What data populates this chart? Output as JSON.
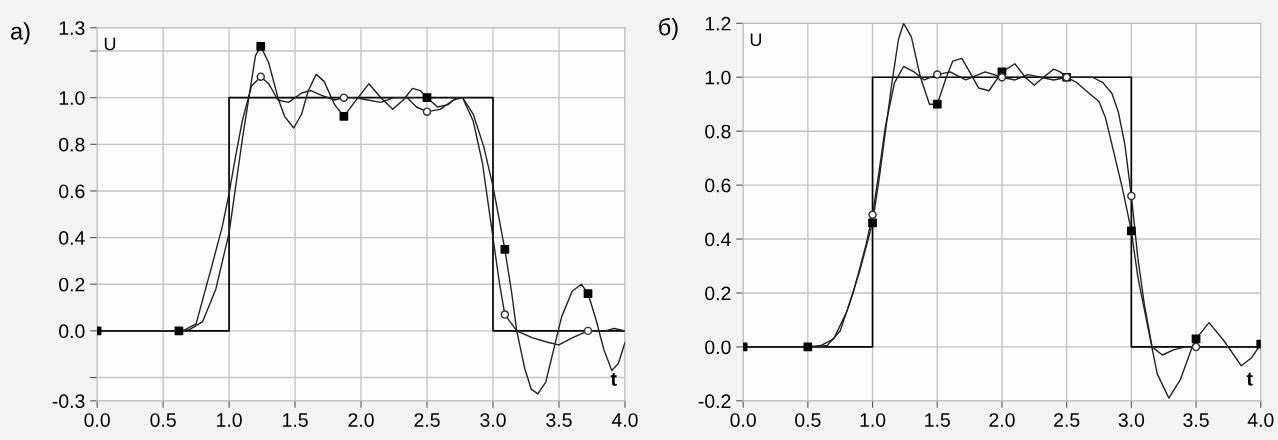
{
  "chart_data": [
    {
      "type": "line",
      "title": "а)",
      "xlabel": "t",
      "ylabel": "U",
      "xlim": [
        0,
        4
      ],
      "ylim": [
        -0.3,
        1.3
      ],
      "xticks": [
        {
          "value": 0,
          "label": "0.0"
        },
        0.5,
        {
          "value": 1,
          "label": "1.0"
        },
        1.5,
        {
          "value": 2,
          "label": "2.0"
        },
        2.5,
        {
          "value": 3,
          "label": "3.0"
        },
        3.5,
        {
          "value": 4,
          "label": "4.0"
        }
      ],
      "yticks": [
        -0.3,
        {
          "value": -0.2,
          "label": null
        },
        {
          "value": 0,
          "label": "0.0"
        },
        0.2,
        0.4,
        0.6,
        0.8,
        {
          "value": 1,
          "label": "1.0"
        },
        {
          "value": 1.2,
          "label": null
        },
        1.3
      ],
      "grid": true,
      "legend": false,
      "series": [
        {
          "type": "step",
          "color": "#000000",
          "x": [
            0,
            1,
            3,
            4
          ],
          "values": [
            0,
            1,
            0,
            0
          ]
        },
        {
          "color": "#222222",
          "x": [
            0,
            0.62,
            0.7,
            0.8,
            0.9,
            1.0,
            1.05,
            1.1,
            1.15,
            1.2,
            1.24,
            1.3,
            1.37,
            1.42,
            1.49,
            1.55,
            1.6,
            1.66,
            1.72,
            1.8,
            1.87,
            1.95,
            2.06,
            2.15,
            2.24,
            2.32,
            2.39,
            2.45,
            2.5,
            2.58,
            2.66,
            2.72,
            2.77,
            2.85,
            2.93,
            3.0,
            3.09,
            3.14,
            3.18,
            3.24,
            3.29,
            3.34,
            3.4,
            3.46,
            3.52,
            3.6,
            3.67,
            3.72,
            3.78,
            3.84,
            3.9,
            3.95,
            4.0
          ],
          "values": [
            0,
            0,
            0.005,
            0.04,
            0.18,
            0.42,
            0.62,
            0.82,
            1.0,
            1.18,
            1.22,
            1.15,
            1.0,
            0.92,
            0.87,
            0.93,
            1.03,
            1.1,
            1.07,
            0.97,
            0.92,
            0.98,
            1.06,
            1.0,
            0.95,
            0.99,
            1.04,
            1.03,
            1.0,
            0.96,
            0.97,
            1.0,
            1.0,
            0.93,
            0.79,
            0.62,
            0.35,
            0.17,
            0.0,
            -0.16,
            -0.25,
            -0.27,
            -0.22,
            -0.08,
            0.06,
            0.17,
            0.2,
            0.16,
            0.05,
            -0.08,
            -0.17,
            -0.14,
            -0.05
          ]
        },
        {
          "color": "#222222",
          "x": [
            0,
            0.65,
            0.75,
            0.87,
            0.95,
            1.0,
            1.05,
            1.1,
            1.17,
            1.24,
            1.3,
            1.37,
            1.45,
            1.55,
            1.62,
            1.7,
            1.8,
            1.87,
            1.95,
            2.05,
            2.15,
            2.25,
            2.35,
            2.42,
            2.5,
            2.6,
            2.7,
            2.77,
            2.85,
            2.92,
            3.0,
            3.05,
            3.09,
            3.18,
            3.3,
            3.42,
            3.5,
            3.6,
            3.72,
            3.85,
            3.92,
            4.0
          ],
          "values": [
            0,
            0,
            0.03,
            0.28,
            0.45,
            0.59,
            0.75,
            0.9,
            1.05,
            1.09,
            1.06,
            0.99,
            0.98,
            1.02,
            1.03,
            1.01,
            0.99,
            1.0,
            1.0,
            0.99,
            0.98,
            1.0,
            1.0,
            0.96,
            0.94,
            0.95,
            0.99,
            1.0,
            0.9,
            0.72,
            0.4,
            0.2,
            0.07,
            0.0,
            -0.03,
            -0.05,
            -0.06,
            -0.03,
            0.0,
            0.0,
            0.01,
            0.0
          ]
        },
        {
          "type": "scatter",
          "marker": "square",
          "color": "#000000",
          "x": [
            0,
            0.62,
            1.24,
            1.87,
            2.5,
            3.09,
            3.72
          ],
          "values": [
            0,
            0,
            1.22,
            0.92,
            1.0,
            0.35,
            0.16
          ]
        },
        {
          "type": "scatter",
          "marker": "circle",
          "color": "#333333",
          "x": [
            1.24,
            1.87,
            2.5,
            3.09,
            3.72
          ],
          "values": [
            1.09,
            1.0,
            0.94,
            0.07,
            0.0
          ]
        }
      ]
    },
    {
      "type": "line",
      "title": "б)",
      "xlabel": "t",
      "ylabel": "U",
      "xlim": [
        0,
        4
      ],
      "ylim": [
        -0.2,
        1.2
      ],
      "xticks": [
        {
          "value": 0,
          "label": "0.0"
        },
        0.5,
        {
          "value": 1,
          "label": "1.0"
        },
        1.5,
        {
          "value": 2,
          "label": "2.0"
        },
        2.5,
        {
          "value": 3,
          "label": "3.0"
        },
        3.5,
        {
          "value": 4,
          "label": "4.0"
        }
      ],
      "yticks": [
        -0.2,
        {
          "value": 0,
          "label": "0.0"
        },
        0.2,
        0.4,
        0.6,
        0.8,
        {
          "value": 1,
          "label": "1.0"
        },
        1.2
      ],
      "grid": true,
      "legend": false,
      "series": [
        {
          "type": "step",
          "color": "#000000",
          "x": [
            0,
            1,
            3,
            4
          ],
          "values": [
            0,
            1,
            0,
            0
          ]
        },
        {
          "color": "#222222",
          "x": [
            0,
            0.5,
            0.6,
            0.7,
            0.8,
            0.9,
            1.0,
            1.05,
            1.1,
            1.15,
            1.2,
            1.24,
            1.3,
            1.37,
            1.44,
            1.5,
            1.57,
            1.62,
            1.69,
            1.75,
            1.82,
            1.9,
            2.0,
            2.1,
            2.18,
            2.25,
            2.32,
            2.4,
            2.45,
            2.5,
            2.58,
            2.65,
            2.75,
            2.8,
            2.85,
            2.93,
            3.0,
            3.05,
            3.1,
            3.15,
            3.2,
            3.29,
            3.38,
            3.47,
            3.5,
            3.6,
            3.72,
            3.85,
            3.93,
            4.0
          ],
          "values": [
            0,
            0,
            0.005,
            0.03,
            0.13,
            0.28,
            0.46,
            0.62,
            0.8,
            0.98,
            1.14,
            1.2,
            1.15,
            1.0,
            0.9,
            0.9,
            1.0,
            1.06,
            1.07,
            1.02,
            0.96,
            0.95,
            1.02,
            1.05,
            1.0,
            0.97,
            1.0,
            1.03,
            1.02,
            1.0,
            0.98,
            0.95,
            0.91,
            0.85,
            0.75,
            0.59,
            0.43,
            0.26,
            0.14,
            0.02,
            -0.1,
            -0.19,
            -0.12,
            0.0,
            0.03,
            0.09,
            0.02,
            -0.07,
            -0.04,
            0.01
          ]
        },
        {
          "color": "#222222",
          "x": [
            0,
            0.55,
            0.65,
            0.75,
            0.85,
            0.95,
            1.0,
            1.05,
            1.1,
            1.17,
            1.24,
            1.32,
            1.4,
            1.5,
            1.6,
            1.72,
            1.87,
            2.0,
            2.1,
            2.2,
            2.3,
            2.4,
            2.5,
            2.6,
            2.7,
            2.78,
            2.85,
            2.9,
            2.95,
            3.0,
            3.05,
            3.1,
            3.16,
            3.24,
            3.33,
            3.42,
            3.5,
            3.7,
            4.0
          ],
          "values": [
            0,
            0,
            0.005,
            0.06,
            0.2,
            0.38,
            0.49,
            0.65,
            0.82,
            0.98,
            1.04,
            1.02,
            0.99,
            1.01,
            1.02,
            0.99,
            1.02,
            1.0,
            0.99,
            1.01,
            1.0,
            0.99,
            1.0,
            1.0,
            1.0,
            0.98,
            0.94,
            0.87,
            0.75,
            0.56,
            0.33,
            0.16,
            0.0,
            -0.03,
            -0.01,
            0.0,
            0.0,
            0.0,
            0.0
          ]
        },
        {
          "type": "scatter",
          "marker": "square",
          "color": "#000000",
          "x": [
            0,
            0.5,
            1.0,
            1.5,
            2.0,
            2.5,
            3.0,
            3.5,
            4.0
          ],
          "values": [
            0,
            0,
            0.46,
            0.9,
            1.02,
            1.0,
            0.43,
            0.03,
            0.01
          ]
        },
        {
          "type": "scatter",
          "marker": "circle",
          "color": "#333333",
          "x": [
            1.0,
            1.5,
            2.0,
            2.5,
            3.0,
            3.5
          ],
          "values": [
            0.49,
            1.01,
            1.0,
            1.0,
            0.56,
            0.0
          ]
        }
      ]
    }
  ]
}
